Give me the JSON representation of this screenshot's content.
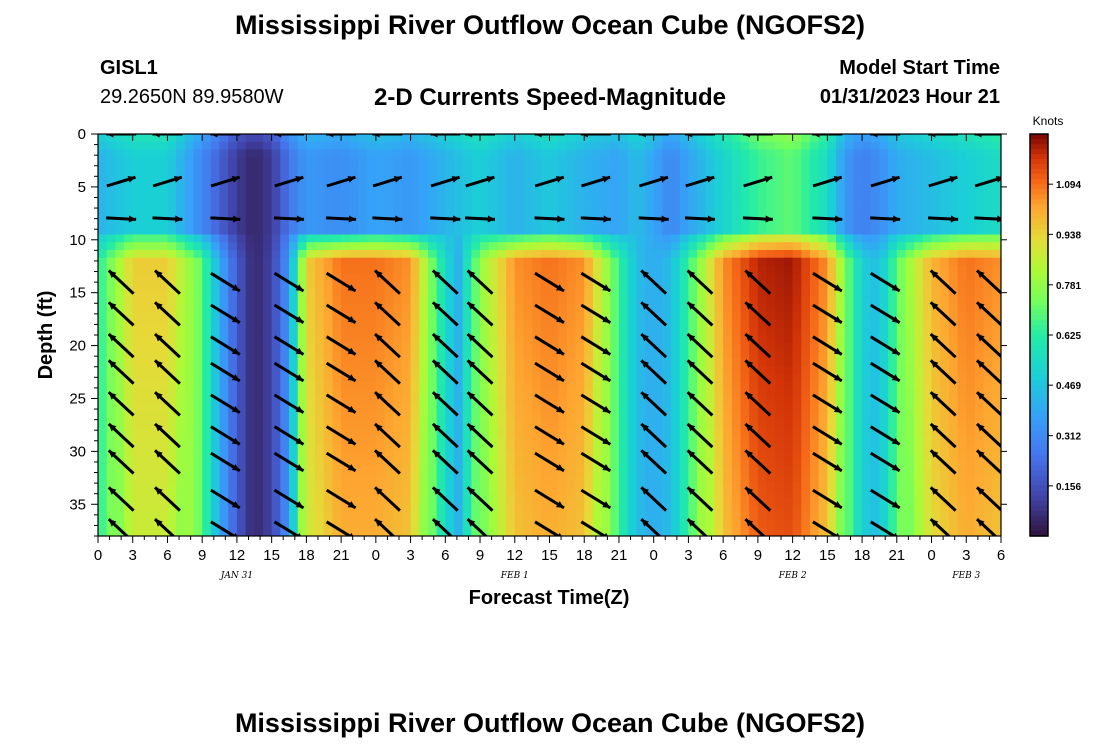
{
  "header": {
    "title": "Mississippi River Outflow Ocean Cube (NGOFS2)",
    "station_id": "GISL1",
    "station_coords": "29.2650N  89.9580W",
    "subtitle": "2-D Currents Speed-Magnitude",
    "model_start_label": "Model Start Time",
    "model_start_value": "01/31/2023 Hour 21"
  },
  "footer": {
    "title": "Mississippi River Outflow Ocean Cube (NGOFS2)"
  },
  "chart_data": {
    "type": "heatmap",
    "title": "2-D Currents Speed-Magnitude",
    "xlabel": "Forecast Time(Z)",
    "ylabel": "Depth (ft)",
    "x_range_hours": [
      0,
      78
    ],
    "ylim": [
      0,
      38
    ],
    "y_inverted": true,
    "x_tick_labels": [
      "0",
      "3",
      "6",
      "9",
      "12",
      "15",
      "18",
      "21",
      "0",
      "3",
      "6",
      "9",
      "12",
      "15",
      "18",
      "21",
      "0",
      "3",
      "6",
      "9",
      "12",
      "15",
      "18",
      "21",
      "0",
      "3",
      "6"
    ],
    "y_ticks": [
      0,
      5,
      10,
      15,
      20,
      25,
      30,
      35
    ],
    "day_labels": [
      {
        "label": "JAN 31",
        "hour": 12
      },
      {
        "label": "FEB 1",
        "hour": 36
      },
      {
        "label": "FEB 2",
        "hour": 60
      },
      {
        "label": "FEB 3",
        "hour": 75
      }
    ],
    "colorbar": {
      "label": "Knots",
      "min": 0.0,
      "max": 1.25,
      "ticks": [
        0.156,
        0.312,
        0.469,
        0.625,
        0.781,
        0.938,
        1.094
      ],
      "tick_labels": [
        "0.156",
        "0.312",
        "0.469",
        "0.625",
        "0.781",
        "0.938",
        "1.094"
      ]
    },
    "speed_profile": {
      "hours": [
        0,
        3,
        6,
        9,
        10.5,
        12,
        13.5,
        15,
        16.5,
        18,
        21,
        24,
        27,
        29,
        31,
        33,
        36,
        39,
        42,
        45,
        46.5,
        48,
        49.5,
        51,
        54,
        57,
        60,
        63,
        64.5,
        66,
        67.5,
        69,
        72,
        75,
        78
      ],
      "deep_knots": [
        0.62,
        0.95,
        0.95,
        0.7,
        0.4,
        0.18,
        0.05,
        0.12,
        0.35,
        0.95,
        1.09,
        1.09,
        1.05,
        0.7,
        0.4,
        0.78,
        1.05,
        1.09,
        1.05,
        0.65,
        0.45,
        0.4,
        0.45,
        0.65,
        1.05,
        1.2,
        1.22,
        1.05,
        0.75,
        0.5,
        0.45,
        0.7,
        1.0,
        1.09,
        1.05
      ],
      "near_surface_knots": [
        0.42,
        0.5,
        0.5,
        0.3,
        0.2,
        0.1,
        0.05,
        0.1,
        0.25,
        0.35,
        0.32,
        0.38,
        0.35,
        0.4,
        0.45,
        0.5,
        0.42,
        0.48,
        0.42,
        0.38,
        0.45,
        0.38,
        0.3,
        0.38,
        0.52,
        0.65,
        0.7,
        0.55,
        0.35,
        0.28,
        0.32,
        0.4,
        0.45,
        0.5,
        0.55
      ]
    },
    "vector_rows_depth_ft": [
      0,
      4.5,
      8,
      14,
      17,
      20,
      22.5,
      25.5,
      28.5,
      31,
      34.5,
      37.5
    ],
    "vector_columns_hours": [
      2,
      6,
      11,
      16.5,
      21,
      25,
      30,
      33,
      39,
      43,
      48,
      52,
      57,
      63,
      68,
      73,
      77
    ]
  }
}
